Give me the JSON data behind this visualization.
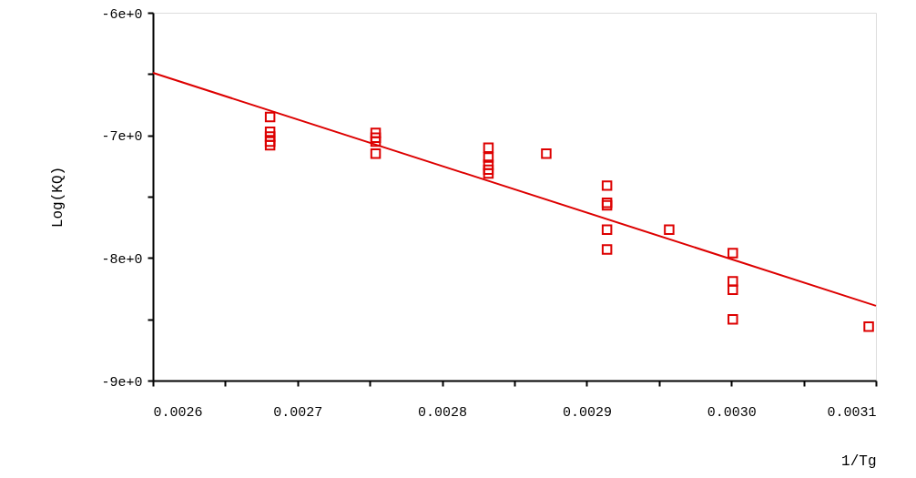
{
  "chart_data": {
    "type": "scatter",
    "xlabel": "1/Tg",
    "ylabel": "Log(KQ)",
    "xlim": [
      0.0026,
      0.0031
    ],
    "ylim": [
      -9,
      -6
    ],
    "xticks": [
      {
        "value": 0.0026,
        "label": "0.0026"
      },
      {
        "value": 0.00265,
        "label": null
      },
      {
        "value": 0.0027,
        "label": "0.0027"
      },
      {
        "value": 0.00275,
        "label": null
      },
      {
        "value": 0.0028,
        "label": "0.0028"
      },
      {
        "value": 0.00285,
        "label": null
      },
      {
        "value": 0.0029,
        "label": "0.0029"
      },
      {
        "value": 0.00295,
        "label": null
      },
      {
        "value": 0.003,
        "label": "0.0030"
      },
      {
        "value": 0.00305,
        "label": null
      },
      {
        "value": 0.0031,
        "label": "0.0031"
      }
    ],
    "yticks": [
      {
        "value": -9,
        "label": "-9e+0"
      },
      {
        "value": -8.5,
        "label": null
      },
      {
        "value": -8,
        "label": "-8e+0"
      },
      {
        "value": -7.5,
        "label": null
      },
      {
        "value": -7,
        "label": "-7e+0"
      },
      {
        "value": -6.5,
        "label": null
      },
      {
        "value": -6,
        "label": "-6e+0"
      }
    ],
    "grid": false,
    "series": [
      {
        "marker": "square",
        "color": "#dd0000",
        "x": [
          0.002681,
          0.002681,
          0.002681,
          0.002681,
          0.002681,
          0.002754,
          0.002754,
          0.002754,
          0.002754,
          0.002832,
          0.002832,
          0.002832,
          0.002832,
          0.002832,
          0.002872,
          0.002914,
          0.002914,
          0.002914,
          0.002914,
          0.002914,
          0.002957,
          0.003001,
          0.003001,
          0.003001,
          0.003001,
          0.003095
        ],
        "values": [
          -6.85,
          -6.97,
          -7.01,
          -7.05,
          -7.08,
          -6.98,
          -7.02,
          -7.05,
          -7.15,
          -7.1,
          -7.18,
          -7.24,
          -7.28,
          -7.31,
          -7.15,
          -7.41,
          -7.55,
          -7.57,
          -7.77,
          -7.93,
          -7.77,
          -7.96,
          -8.19,
          -8.26,
          -8.5,
          -8.56
        ]
      },
      {
        "type": "line",
        "marker": "none",
        "line_style": "solid",
        "color": "#dd0000",
        "x": [
          0.0026,
          0.0031
        ],
        "values": [
          -6.49,
          -8.39
        ]
      }
    ]
  }
}
